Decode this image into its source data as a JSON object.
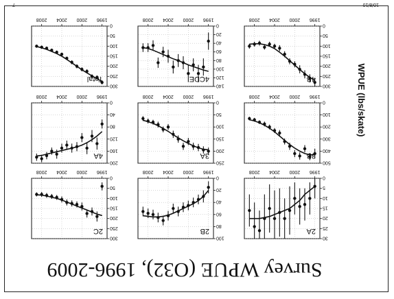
{
  "slide": {
    "title": "Survey WPUE (O32), 1996-2009",
    "y_axis_label": "WPUE (lbs/skate)",
    "corner_left": "10/8/10",
    "corner_right": "7"
  },
  "colors": {
    "ink": "#111111",
    "panel_bg": "#ffffff",
    "grid": "#999999"
  },
  "chart_data": [
    {
      "type": "scatter",
      "title": "2A",
      "xlim": [
        1995,
        2010
      ],
      "x_ticks": [
        1996,
        2000,
        2004,
        2008
      ],
      "ylim": [
        0,
        30
      ],
      "y_ticks": [
        0,
        5,
        10,
        15,
        20,
        25,
        30
      ],
      "x": [
        1996,
        1997,
        1998,
        1999,
        2000,
        2001,
        2002,
        2003,
        2004,
        2005,
        2006,
        2007,
        2008,
        2009
      ],
      "y": [
        4,
        10,
        13,
        14,
        10,
        16,
        20,
        17,
        20,
        15,
        20,
        26,
        24,
        16
      ],
      "err": [
        6,
        8,
        8,
        9,
        8,
        12,
        10,
        12,
        14,
        12,
        12,
        10,
        12,
        8
      ],
      "fit": [
        4,
        6,
        8,
        11,
        13,
        15,
        16,
        17,
        18,
        19,
        19.5,
        20,
        20,
        20
      ]
    },
    {
      "type": "scatter",
      "title": "2B",
      "xlim": [
        1995,
        2010
      ],
      "x_ticks": [
        1996,
        2000,
        2004,
        2008
      ],
      "ylim": [
        0,
        100
      ],
      "y_ticks": [
        0,
        20,
        40,
        60,
        80,
        100
      ],
      "x": [
        1996,
        1997,
        1998,
        1999,
        2000,
        2001,
        2002,
        2003,
        2004,
        2005,
        2006,
        2007,
        2008,
        2009
      ],
      "y": [
        15,
        30,
        35,
        40,
        45,
        48,
        55,
        50,
        62,
        70,
        65,
        60,
        58,
        55
      ],
      "err": [
        10,
        10,
        8,
        8,
        8,
        8,
        8,
        8,
        8,
        8,
        8,
        8,
        8,
        8
      ],
      "fit": [
        20,
        30,
        37,
        42,
        46,
        50,
        54,
        58,
        61,
        63,
        64,
        64,
        63,
        62
      ]
    },
    {
      "type": "scatter",
      "title": "2C",
      "xlim": [
        1995,
        2010
      ],
      "x_ticks": [
        1996,
        2000,
        2004,
        2008
      ],
      "ylim": [
        0,
        300
      ],
      "y_ticks": [
        0,
        50,
        100,
        150,
        200,
        250,
        300
      ],
      "x": [
        1996,
        1997,
        1998,
        1999,
        2000,
        2001,
        2002,
        2003,
        2004,
        2005,
        2006,
        2007,
        2008,
        2009
      ],
      "y": [
        40,
        190,
        165,
        175,
        140,
        130,
        125,
        120,
        105,
        95,
        90,
        85,
        80,
        80
      ],
      "err": [
        20,
        25,
        20,
        20,
        20,
        15,
        15,
        15,
        15,
        12,
        12,
        12,
        12,
        10
      ],
      "fit": [
        185,
        178,
        168,
        158,
        148,
        138,
        128,
        118,
        108,
        100,
        94,
        88,
        84,
        82
      ]
    },
    {
      "type": "scatter",
      "title": "3B",
      "xlim": [
        1995,
        2010
      ],
      "x_ticks": [
        1996,
        2000,
        2004,
        2008
      ],
      "ylim": [
        0,
        500
      ],
      "y_ticks": [
        0,
        100,
        200,
        300,
        400,
        500
      ],
      "x": [
        1996,
        1997,
        1998,
        1999,
        2000,
        2001,
        2002,
        2003,
        2004,
        2005,
        2006,
        2007,
        2008,
        2009
      ],
      "y": [
        420,
        445,
        380,
        440,
        420,
        360,
        320,
        250,
        230,
        200,
        175,
        160,
        140,
        130
      ],
      "err": [
        40,
        30,
        30,
        30,
        30,
        30,
        25,
        25,
        20,
        20,
        20,
        15,
        15,
        15
      ],
      "fit": [
        430,
        430,
        420,
        400,
        375,
        345,
        310,
        275,
        240,
        210,
        185,
        165,
        150,
        140
      ]
    },
    {
      "type": "scatter",
      "title": "3A",
      "xlim": [
        1995,
        2010
      ],
      "x_ticks": [
        1996,
        2000,
        2004,
        2008
      ],
      "ylim": [
        0,
        250
      ],
      "y_ticks": [
        0,
        50,
        100,
        150,
        200,
        250
      ],
      "x": [
        1996,
        1997,
        1998,
        1999,
        2000,
        2001,
        2002,
        2003,
        2004,
        2005,
        2006,
        2007,
        2008,
        2009
      ],
      "y": [
        200,
        195,
        185,
        180,
        160,
        180,
        150,
        130,
        100,
        110,
        90,
        80,
        75,
        65
      ],
      "err": [
        15,
        15,
        15,
        15,
        15,
        15,
        15,
        15,
        12,
        12,
        12,
        10,
        10,
        10
      ],
      "fit": [
        195,
        192,
        186,
        178,
        168,
        157,
        145,
        132,
        118,
        106,
        95,
        85,
        78,
        72
      ]
    },
    {
      "type": "scatter",
      "title": "4A",
      "xlim": [
        1995,
        2010
      ],
      "x_ticks": [
        1996,
        2000,
        2004,
        2008
      ],
      "ylim": [
        0,
        200
      ],
      "y_ticks": [
        0,
        40,
        80,
        120,
        160,
        200
      ],
      "x": [
        1996,
        1997,
        1998,
        1999,
        2000,
        2001,
        2002,
        2003,
        2004,
        2005,
        2006,
        2007,
        2008,
        2009
      ],
      "y": [
        70,
        135,
        110,
        150,
        115,
        145,
        150,
        140,
        150,
        170,
        160,
        175,
        185,
        180
      ],
      "err": [
        15,
        20,
        20,
        20,
        15,
        15,
        15,
        15,
        15,
        15,
        12,
        12,
        12,
        12
      ],
      "fit": [
        95,
        110,
        122,
        132,
        140,
        146,
        150,
        154,
        158,
        162,
        166,
        170,
        174,
        176
      ]
    },
    {
      "type": "scatter",
      "title": "4B",
      "xlim": [
        1995,
        2010
      ],
      "x_ticks": [
        1996,
        2000,
        2004,
        2008
      ],
      "ylim": [
        0,
        300
      ],
      "y_ticks": [
        0,
        50,
        100,
        150,
        200,
        250,
        300
      ],
      "x": [
        1996,
        1997,
        1998,
        1999,
        2000,
        2001,
        2002,
        2003,
        2004,
        2005,
        2006,
        2007,
        2008,
        2009
      ],
      "y": [
        280,
        260,
        240,
        215,
        190,
        175,
        140,
        110,
        100,
        90,
        105,
        85,
        90,
        100
      ],
      "err": [
        20,
        20,
        20,
        20,
        15,
        15,
        15,
        15,
        12,
        12,
        12,
        12,
        12,
        12
      ],
      "fit": [
        270,
        255,
        237,
        216,
        194,
        172,
        150,
        130,
        112,
        100,
        92,
        88,
        88,
        90
      ]
    },
    {
      "type": "scatter",
      "title": "4CDE",
      "xlim": [
        1995,
        2010
      ],
      "x_ticks": [
        1996,
        2000,
        2004,
        2008
      ],
      "ylim": [
        0,
        140
      ],
      "y_ticks": [
        0,
        20,
        40,
        60,
        80,
        100,
        120,
        140
      ],
      "x": [
        1996,
        1997,
        1998,
        1999,
        2000,
        2001,
        2002,
        2003,
        2004,
        2005,
        2006,
        2007,
        2008,
        2009
      ],
      "y": [
        35,
        95,
        110,
        90,
        110,
        85,
        80,
        95,
        70,
        60,
        85,
        45,
        50,
        50
      ],
      "err": [
        20,
        20,
        20,
        15,
        20,
        15,
        15,
        15,
        15,
        12,
        12,
        12,
        10,
        10
      ],
      "fit": [
        105,
        102,
        98,
        94,
        90,
        85,
        80,
        76,
        71,
        66,
        61,
        56,
        52,
        50
      ]
    },
    {
      "type": "scatter",
      "title": "Total",
      "xlim": [
        1995,
        2010
      ],
      "x_ticks": [
        1996,
        2000,
        2004,
        2008
      ],
      "ylim": [
        0,
        300
      ],
      "y_ticks": [
        0,
        50,
        100,
        150,
        200,
        250,
        300
      ],
      "x": [
        1996,
        1997,
        1998,
        1999,
        2000,
        2001,
        2002,
        2003,
        2004,
        2005,
        2006,
        2007,
        2008,
        2009
      ],
      "y": [
        280,
        255,
        250,
        225,
        215,
        200,
        180,
        160,
        140,
        130,
        120,
        110,
        105,
        100
      ],
      "err": [
        10,
        10,
        10,
        10,
        10,
        10,
        10,
        8,
        8,
        8,
        8,
        8,
        8,
        8
      ],
      "fit": [
        275,
        262,
        248,
        233,
        217,
        200,
        183,
        166,
        150,
        137,
        126,
        116,
        108,
        102
      ]
    }
  ]
}
